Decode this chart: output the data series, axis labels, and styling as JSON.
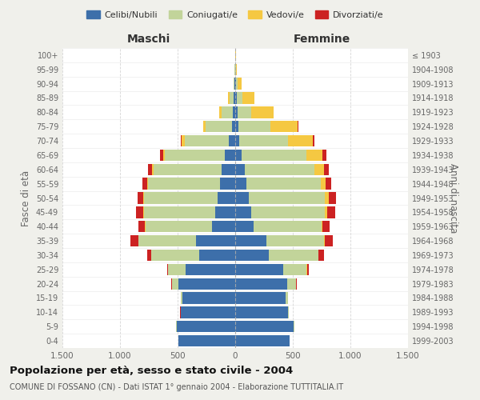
{
  "age_groups": [
    "0-4",
    "5-9",
    "10-14",
    "15-19",
    "20-24",
    "25-29",
    "30-34",
    "35-39",
    "40-44",
    "45-49",
    "50-54",
    "55-59",
    "60-64",
    "65-69",
    "70-74",
    "75-79",
    "80-84",
    "85-89",
    "90-94",
    "95-99",
    "100+"
  ],
  "birth_years": [
    "1999-2003",
    "1994-1998",
    "1989-1993",
    "1984-1988",
    "1979-1983",
    "1974-1978",
    "1969-1973",
    "1964-1968",
    "1959-1963",
    "1954-1958",
    "1949-1953",
    "1944-1948",
    "1939-1943",
    "1934-1938",
    "1929-1933",
    "1924-1928",
    "1919-1923",
    "1914-1918",
    "1909-1913",
    "1904-1908",
    "≤ 1903"
  ],
  "males": {
    "celibi": [
      490,
      510,
      470,
      460,
      490,
      430,
      310,
      340,
      200,
      175,
      155,
      135,
      120,
      90,
      55,
      30,
      20,
      12,
      5,
      2,
      2
    ],
    "coniugati": [
      5,
      5,
      5,
      10,
      60,
      150,
      420,
      500,
      580,
      620,
      640,
      620,
      590,
      520,
      380,
      230,
      95,
      40,
      10,
      2,
      0
    ],
    "vedovi": [
      0,
      0,
      0,
      0,
      1,
      1,
      1,
      2,
      2,
      3,
      5,
      8,
      10,
      15,
      30,
      15,
      25,
      8,
      2,
      0,
      0
    ],
    "divorziati": [
      0,
      0,
      1,
      2,
      5,
      10,
      35,
      65,
      55,
      60,
      50,
      45,
      40,
      25,
      8,
      5,
      2,
      0,
      0,
      0,
      0
    ]
  },
  "females": {
    "nubili": [
      470,
      510,
      460,
      440,
      450,
      420,
      290,
      270,
      160,
      140,
      120,
      100,
      80,
      55,
      35,
      25,
      20,
      15,
      8,
      3,
      2
    ],
    "coniugate": [
      5,
      5,
      5,
      15,
      80,
      200,
      430,
      500,
      590,
      640,
      660,
      640,
      610,
      560,
      420,
      280,
      120,
      50,
      12,
      2,
      0
    ],
    "vedove": [
      0,
      0,
      0,
      1,
      1,
      2,
      3,
      5,
      10,
      20,
      35,
      45,
      80,
      145,
      220,
      240,
      190,
      100,
      35,
      8,
      2
    ],
    "divorziate": [
      0,
      0,
      1,
      2,
      5,
      15,
      45,
      75,
      60,
      65,
      60,
      50,
      45,
      30,
      10,
      5,
      5,
      2,
      1,
      0,
      0
    ]
  },
  "colors": {
    "celibi": "#3d6faa",
    "coniugati": "#c2d49a",
    "vedovi": "#f5c842",
    "divorziati": "#cc2222"
  },
  "xlim": 1500,
  "title": "Popolazione per età, sesso e stato civile - 2004",
  "subtitle": "COMUNE DI FOSSANO (CN) - Dati ISTAT 1° gennaio 2004 - Elaborazione TUTTITALIA.IT",
  "xlabel_left": "Maschi",
  "xlabel_right": "Femmine",
  "ylabel_left": "Fasce di età",
  "ylabel_right": "Anni di nascita",
  "bg_color": "#f0f0eb",
  "plot_bg_color": "#ffffff"
}
